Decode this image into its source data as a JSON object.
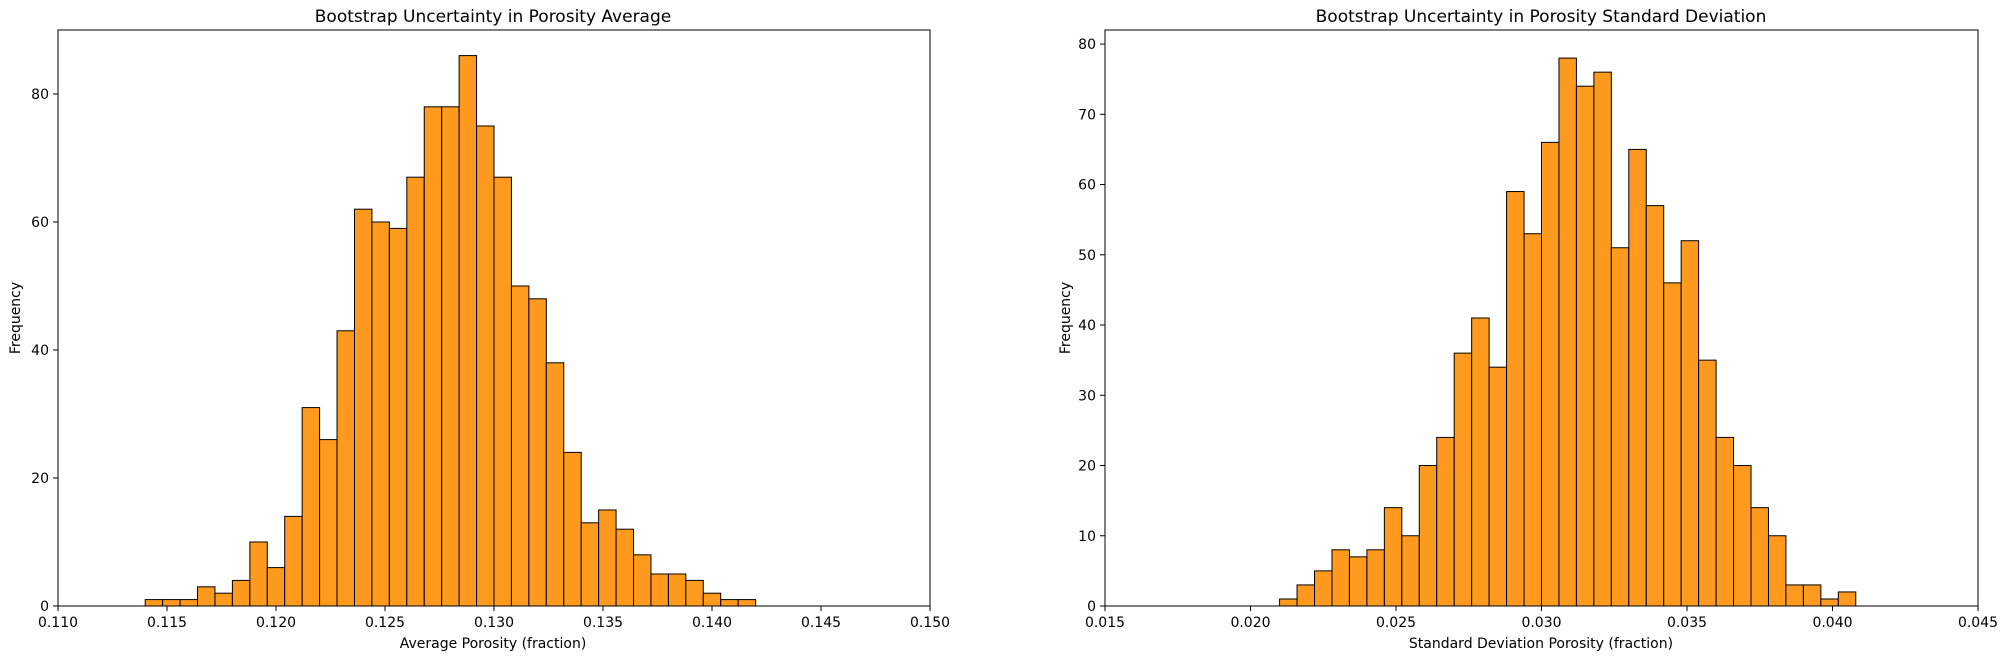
{
  "chart_data": [
    {
      "type": "bar",
      "histogram": true,
      "title": "Bootstrap Uncertainty in Porosity Average",
      "xlabel": "Average Porosity (fraction)",
      "ylabel": "Frequency",
      "xlim": [
        0.11,
        0.15
      ],
      "ylim": [
        0,
        90
      ],
      "x_tick_labels": [
        "0.110",
        "0.115",
        "0.120",
        "0.125",
        "0.130",
        "0.135",
        "0.140",
        "0.145",
        "0.150"
      ],
      "y_tick_labels": [
        "0",
        "20",
        "40",
        "60",
        "80"
      ],
      "bin_start": 0.114,
      "bin_width": 0.0008,
      "values": [
        1,
        1,
        1,
        3,
        2,
        4,
        10,
        6,
        14,
        31,
        26,
        43,
        62,
        60,
        59,
        67,
        78,
        78,
        86,
        75,
        67,
        50,
        48,
        38,
        24,
        13,
        15,
        12,
        8,
        5,
        5,
        4,
        2,
        1,
        1
      ],
      "bar_color": "#ff9a1f",
      "edge_color": "#000000",
      "grid": false
    },
    {
      "type": "bar",
      "histogram": true,
      "title": "Bootstrap Uncertainty in Porosity Standard Deviation",
      "xlabel": "Standard Deviation Porosity (fraction)",
      "ylabel": "Frequency",
      "xlim": [
        0.015,
        0.045
      ],
      "ylim": [
        0,
        82
      ],
      "x_tick_labels": [
        "0.015",
        "0.020",
        "0.025",
        "0.030",
        "0.035",
        "0.040",
        "0.045"
      ],
      "y_tick_labels": [
        "0",
        "10",
        "20",
        "30",
        "40",
        "50",
        "60",
        "70",
        "80"
      ],
      "bin_start": 0.021,
      "bin_width": 0.0006,
      "values": [
        1,
        3,
        5,
        8,
        7,
        8,
        14,
        10,
        20,
        24,
        36,
        41,
        34,
        59,
        53,
        66,
        78,
        74,
        76,
        51,
        65,
        57,
        46,
        52,
        35,
        24,
        20,
        14,
        10,
        3,
        3,
        1,
        2
      ],
      "bar_color": "#ff9a1f",
      "edge_color": "#000000",
      "grid": false
    }
  ]
}
